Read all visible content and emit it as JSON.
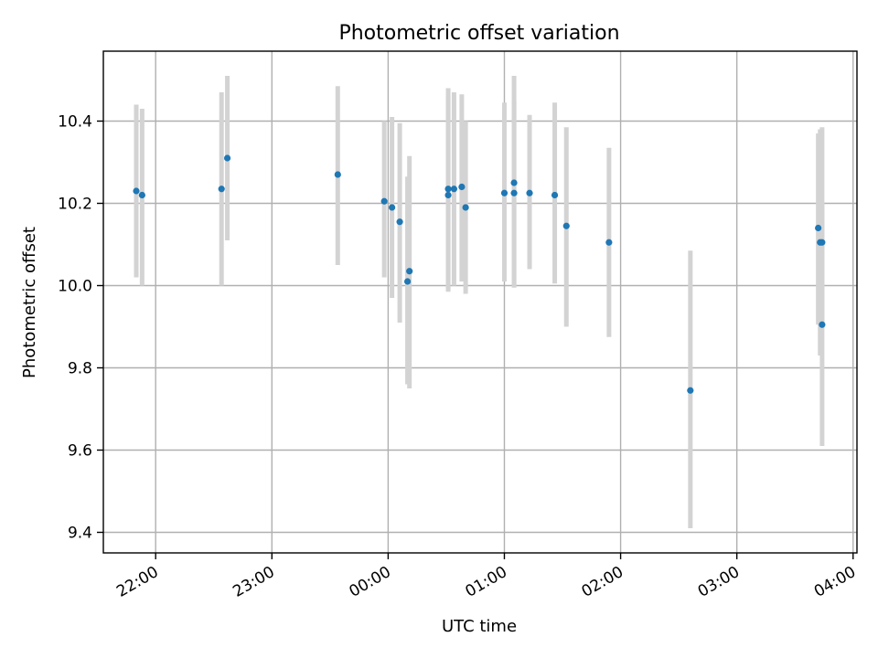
{
  "chart_data": {
    "type": "scatter",
    "title": "Photometric offset variation",
    "xlabel": "UTC time",
    "ylabel": "Photometric offset",
    "x_ticks": [
      "22:00",
      "23:00",
      "00:00",
      "01:00",
      "02:00",
      "03:00",
      "04:00"
    ],
    "y_ticks": [
      "9.4",
      "9.6",
      "9.8",
      "10.0",
      "10.2",
      "10.4"
    ],
    "xlim": [
      "21:33",
      "04:02"
    ],
    "ylim": [
      9.35,
      10.57
    ],
    "grid": true,
    "marker_color": "#1f77b4",
    "errorbar_color": "#d3d3d3",
    "points": [
      {
        "x": "21:50",
        "y": 10.23,
        "ylo": 10.02,
        "yhi": 10.44
      },
      {
        "x": "21:53",
        "y": 10.22,
        "ylo": 10.0,
        "yhi": 10.43
      },
      {
        "x": "22:34",
        "y": 10.235,
        "ylo": 10.0,
        "yhi": 10.47
      },
      {
        "x": "22:37",
        "y": 10.31,
        "ylo": 10.11,
        "yhi": 10.51
      },
      {
        "x": "23:34",
        "y": 10.27,
        "ylo": 10.05,
        "yhi": 10.485
      },
      {
        "x": "23:58",
        "y": 10.205,
        "ylo": 10.02,
        "yhi": 10.4
      },
      {
        "x": "00:02",
        "y": 10.19,
        "ylo": 9.97,
        "yhi": 10.41
      },
      {
        "x": "00:06",
        "y": 10.155,
        "ylo": 9.91,
        "yhi": 10.395
      },
      {
        "x": "00:10",
        "y": 10.01,
        "ylo": 9.76,
        "yhi": 10.265
      },
      {
        "x": "00:11",
        "y": 10.035,
        "ylo": 9.75,
        "yhi": 10.315
      },
      {
        "x": "00:31",
        "y": 10.22,
        "ylo": 9.985,
        "yhi": 10.46
      },
      {
        "x": "00:31",
        "y": 10.235,
        "ylo": 9.99,
        "yhi": 10.48
      },
      {
        "x": "00:34",
        "y": 10.235,
        "ylo": 10.0,
        "yhi": 10.47
      },
      {
        "x": "00:38",
        "y": 10.24,
        "ylo": 10.01,
        "yhi": 10.465
      },
      {
        "x": "00:40",
        "y": 10.19,
        "ylo": 9.98,
        "yhi": 10.4
      },
      {
        "x": "01:00",
        "y": 10.225,
        "ylo": 10.01,
        "yhi": 10.445
      },
      {
        "x": "01:05",
        "y": 10.25,
        "ylo": 10.0,
        "yhi": 10.51
      },
      {
        "x": "01:05",
        "y": 10.225,
        "ylo": 9.995,
        "yhi": 10.45
      },
      {
        "x": "01:13",
        "y": 10.225,
        "ylo": 10.04,
        "yhi": 10.415
      },
      {
        "x": "01:26",
        "y": 10.22,
        "ylo": 10.005,
        "yhi": 10.445
      },
      {
        "x": "01:32",
        "y": 10.145,
        "ylo": 9.9,
        "yhi": 10.385
      },
      {
        "x": "01:54",
        "y": 10.105,
        "ylo": 9.875,
        "yhi": 10.335
      },
      {
        "x": "02:36",
        "y": 9.745,
        "ylo": 9.41,
        "yhi": 10.085
      },
      {
        "x": "03:42",
        "y": 10.14,
        "ylo": 9.905,
        "yhi": 10.37
      },
      {
        "x": "03:43",
        "y": 10.105,
        "ylo": 9.83,
        "yhi": 10.38
      },
      {
        "x": "03:44",
        "y": 10.105,
        "ylo": 9.905,
        "yhi": 10.385
      },
      {
        "x": "03:44",
        "y": 9.905,
        "ylo": 9.61,
        "yhi": 10.2
      }
    ]
  }
}
